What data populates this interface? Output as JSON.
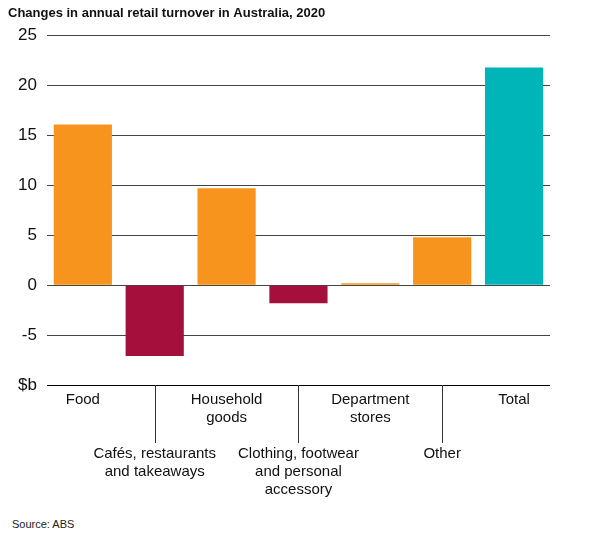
{
  "chart_data": {
    "type": "bar",
    "title": "Changes in annual retail turnover in Australia, 2020",
    "source": "Source: ABS",
    "categories": [
      [
        "Food"
      ],
      [
        "Cafés, restaurants",
        "and takeaways"
      ],
      [
        "Household",
        "goods"
      ],
      [
        "Clothing, footwear",
        "and personal",
        "accessory"
      ],
      [
        "Department",
        "stores"
      ],
      [
        "Other"
      ],
      [
        "Total"
      ]
    ],
    "values": [
      16.1,
      -7.1,
      9.7,
      -1.8,
      0.2,
      4.8,
      21.8
    ],
    "colors": [
      "#f7941d",
      "#a50f3c",
      "#f7941d",
      "#a50f3c",
      "#f7941d",
      "#f7941d",
      "#00b5b8"
    ],
    "ylim": [
      -10,
      25
    ],
    "yticks": [
      {
        "value": -10,
        "label": "$b"
      },
      -5,
      0,
      5,
      10,
      15,
      20,
      25
    ],
    "grid": true,
    "data_labels": false
  }
}
